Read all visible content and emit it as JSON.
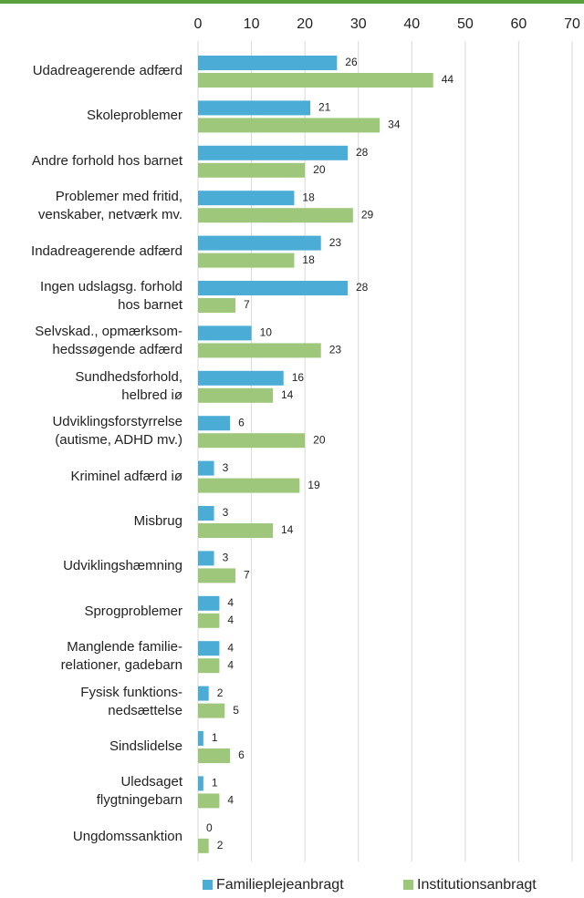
{
  "chart_data": {
    "type": "barh",
    "categories": [
      "Udadreagerende adfærd",
      "Skoleproblemer",
      "Andre forhold hos barnet",
      "Problemer med fritid,\nvenskaber, netværk mv.",
      "Indadreagerende adfærd",
      "Ingen udslagsg. forhold\nhos barnet",
      "Selvskad., opmærksom-\nhedssøgende adfærd",
      "Sundhedsforhold,\nhelbred iø",
      "Udviklingsforstyrrelse\n(autisme, ADHD mv.)",
      "Kriminel adfærd iø",
      "Misbrug",
      "Udviklingshæmning",
      "Sprogproblemer",
      "Manglende familie-\nrelationer, gadebarn",
      "Fysisk funktions-\nnedsættelse",
      "Sindslidelse",
      "Uledsaget\nflygtningebarn",
      "Ungdomssanktion"
    ],
    "series": [
      {
        "name": "Familieplejeanbragt",
        "color": "#4bacd6",
        "values": [
          26,
          21,
          28,
          18,
          23,
          28,
          10,
          16,
          6,
          3,
          3,
          3,
          4,
          4,
          2,
          1,
          1,
          0
        ]
      },
      {
        "name": "Institutionsanbragt",
        "color": "#9fc77c",
        "values": [
          44,
          34,
          20,
          29,
          18,
          7,
          23,
          14,
          20,
          19,
          14,
          7,
          4,
          4,
          5,
          6,
          4,
          2
        ]
      }
    ],
    "xlim": [
      0,
      70
    ],
    "xticks": [
      0,
      10,
      20,
      30,
      40,
      50,
      60,
      70
    ],
    "grid": true,
    "legend": "bottom"
  }
}
